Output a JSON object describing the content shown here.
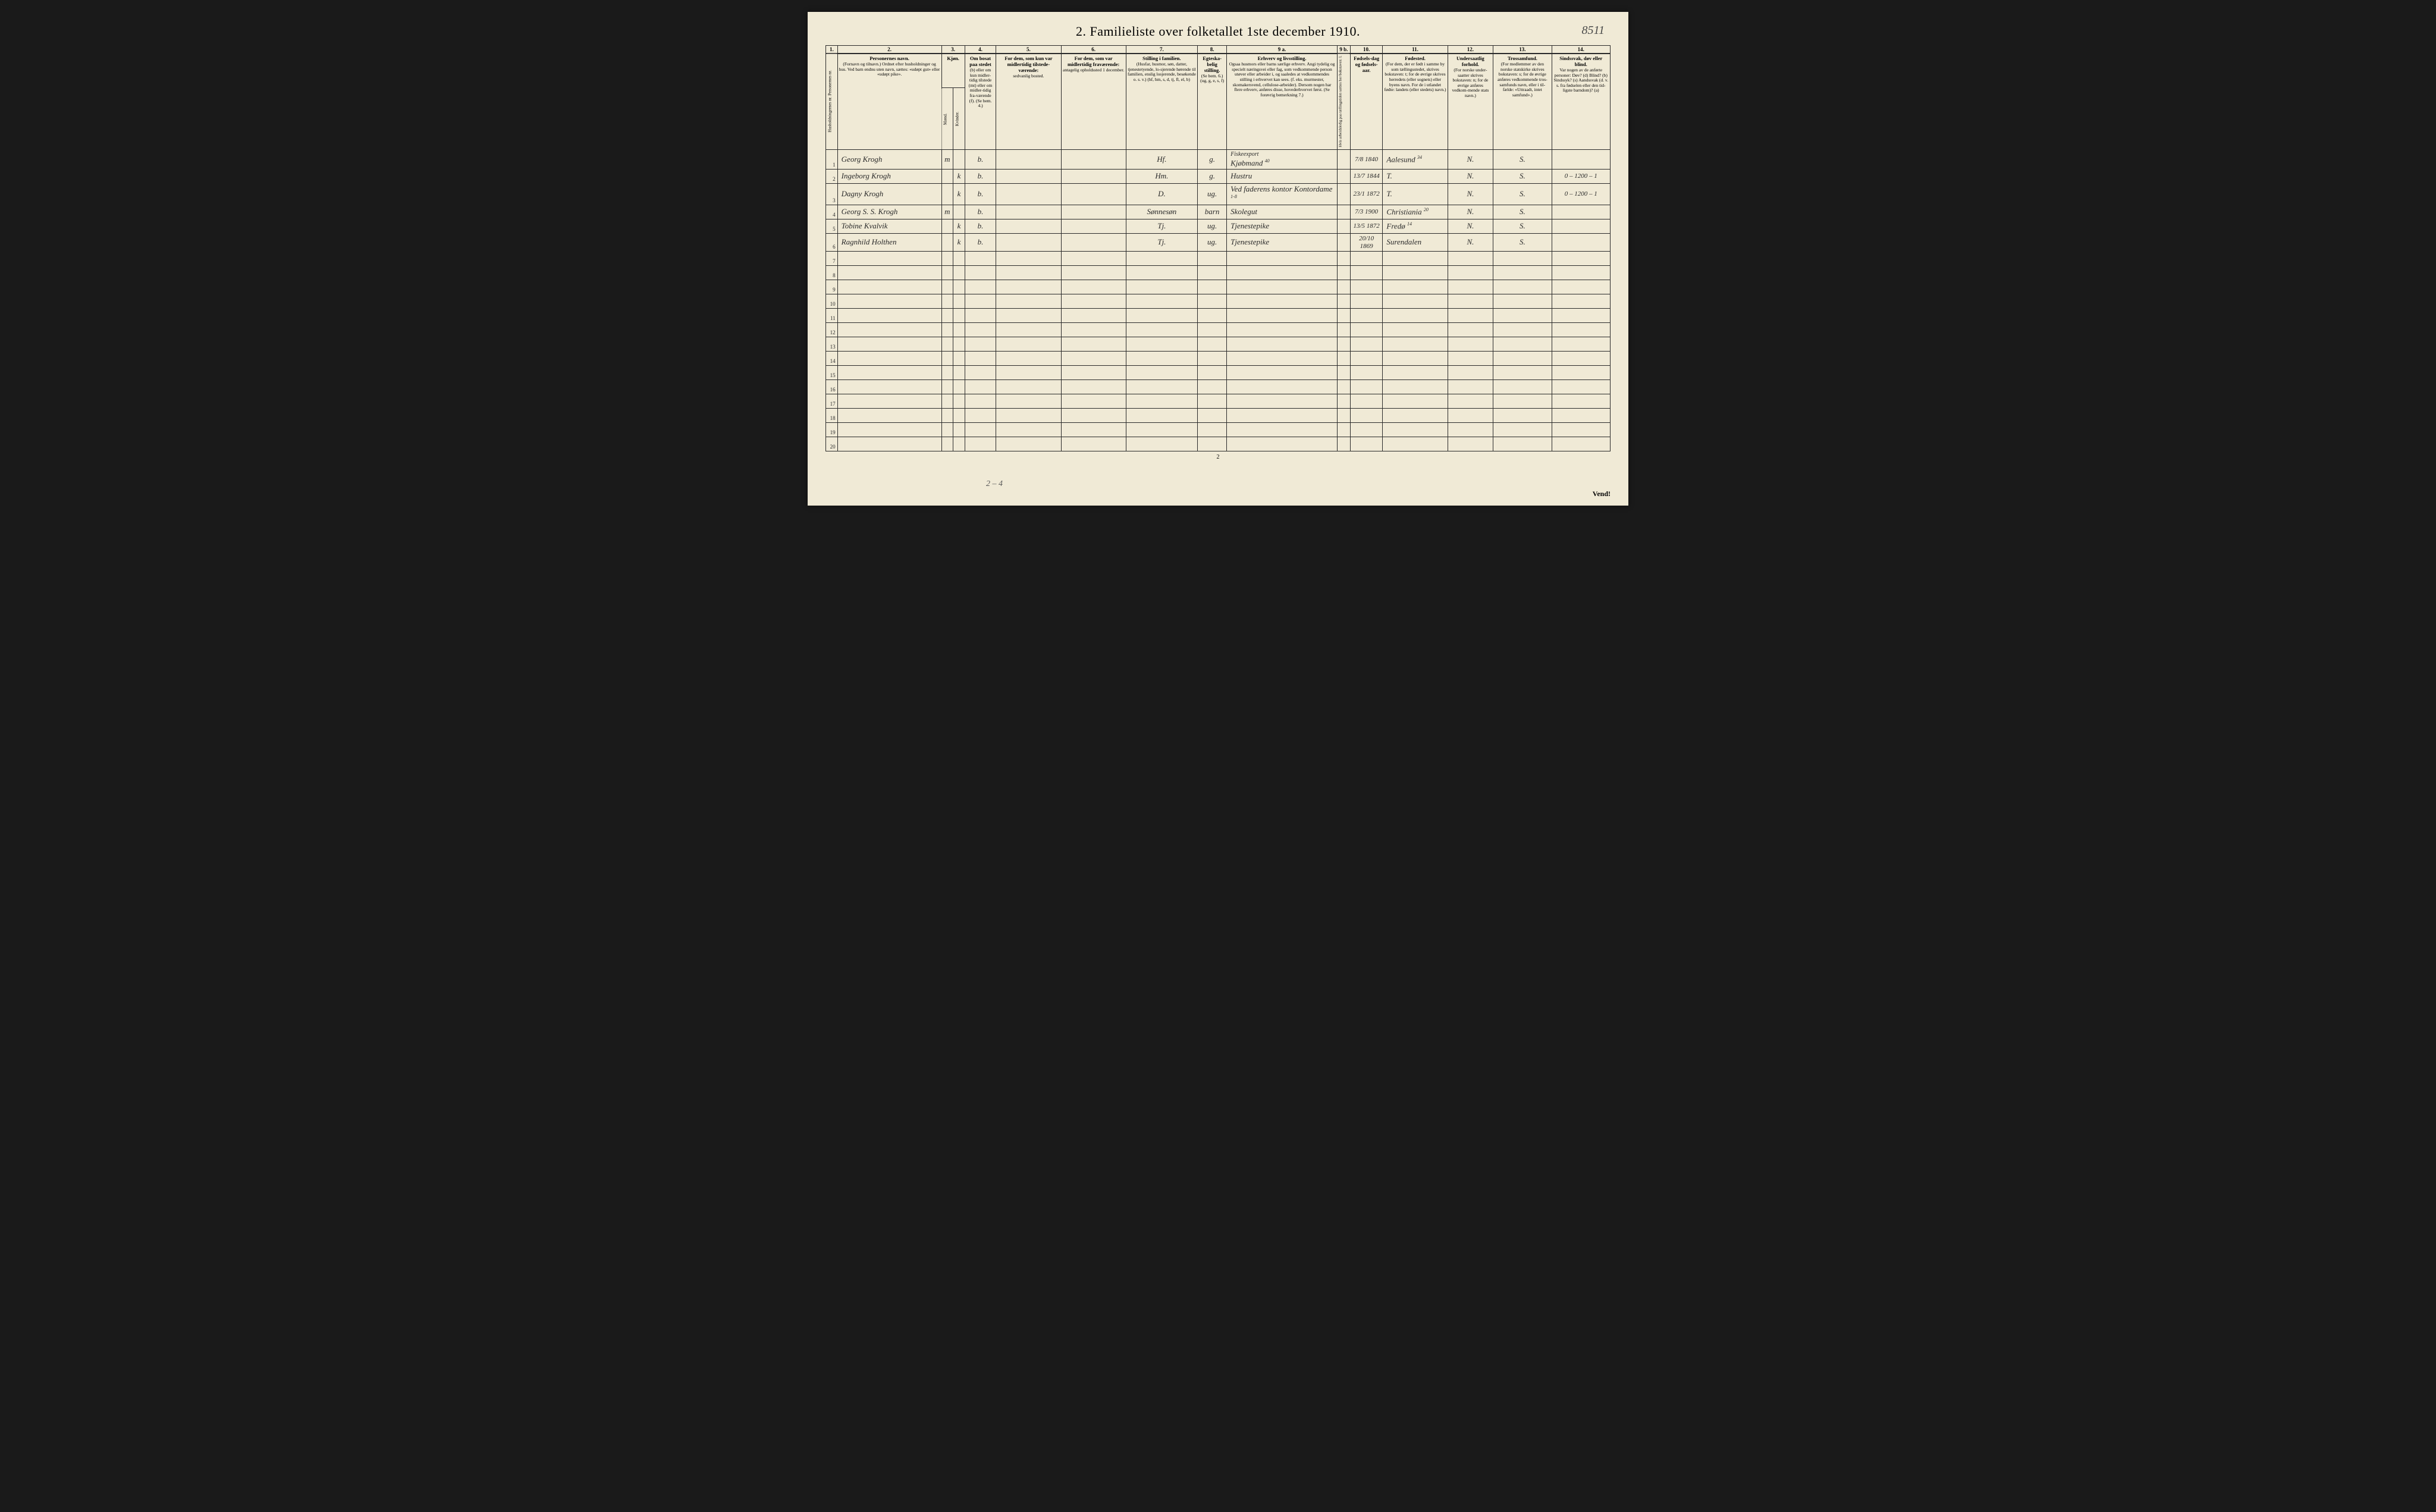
{
  "document": {
    "title": "2.  Familieliste over folketallet 1ste december 1910.",
    "sheet_number": "8511",
    "page_footer_number": "2",
    "footer_pencil": "2 – 4",
    "vend": "Vend!",
    "background_color": "#f0ead6",
    "border_color": "#2a2a2a",
    "handwriting_color": "#2a2a2a"
  },
  "columns": {
    "numbers": [
      "1.",
      "2.",
      "3.",
      "4.",
      "5.",
      "6.",
      "7.",
      "8.",
      "9 a.",
      "9 b.",
      "10.",
      "11.",
      "12.",
      "13.",
      "14."
    ],
    "headers": {
      "c1": "Husholdningernes nr.\nPersonernes nr.",
      "c2_title": "Personernes navn.",
      "c2_sub": "(Fornavn og tilnavn.)\nOrdnet efter husholdninger og hus.\nVed barn endnu uten navn, sættes: «udøpt gut» eller «udøpt pike».",
      "c3_title": "Kjøn.",
      "c3_m": "Mænd.",
      "c3_k": "Kvinder.",
      "c3_mk": "m. | k.",
      "c4_title": "Om bosat paa stedet",
      "c4_sub": "(b) eller om kun midler-tidig tilstede (mt) eller om midler-tidig fra-værende (f).\n(Se bem. 4.)",
      "c5_title": "For dem, som kun var midlertidig tilstede-værende:",
      "c5_sub": "sedvanlig bosted.",
      "c6_title": "For dem, som var midlertidig fraværende:",
      "c6_sub": "antagelig opholdssted 1 december.",
      "c7_title": "Stilling i familien.",
      "c7_sub": "(Husfar, husmor, søn, datter, tjenestetyende, lo-sjerende hørende til familien, enslig losjerende, besøkende o. s. v.)\n(hf, hm, s, d, tj, fl, el, b)",
      "c8_title": "Egteska-belig stilling.",
      "c8_sub": "(Se bem. 6.)\n(ug, g, e, s, f)",
      "c9a_title": "Erhverv og livsstilling.",
      "c9a_sub": "Ogsaa husmors eller barns særlige erhverv. Angi tydelig og specielt næringsvei eller fag, som vedkommende person utøver eller arbeider i, og saaledes at vedkommendes stilling i erhvervet kan sees. (f. eks. murmester, skomakersvend, cellulose-arbeider). Dersom nogen har flere erhverv, anføres disse, hovederhvervet først.\n(Se forøvrig bemerkning 7.)",
      "c9b": "Hvis arbeidsledig paa tællingstiden sættes her bokstaven: l.",
      "c10_title": "Fødsels-dag og fødsels-aar.",
      "c11_title": "Fødested.",
      "c11_sub": "(For dem, der er født i samme by som tællingsstedet, skrives bokstaven: t; for de øvrige skrives herredets (eller sognets) eller byens navn. For de i utlandet fødte: landets (eller stedets) navn.)",
      "c12_title": "Undersaatlig forhold.",
      "c12_sub": "(For norske under-saatter skrives bokstaven: n; for de øvrige anføres vedkom-mende stats navn.)",
      "c13_title": "Trossamfund.",
      "c13_sub": "(For medlemmer av den norske statskirke skrives bokstaven: s; for de øvrige anføres vedkommende tros-samfunds navn, eller i til-fælde: «Uttraadt, intet samfund».)",
      "c14_title": "Sindssvak, døv eller blind.",
      "c14_sub": "Var nogen av de anførte personer:\nDøv? (d)\nBlind? (b)\nSindssyk? (s)\nAandssvak (d. v. s. fra fødselen eller den tid-ligste barndom)? (a)"
    }
  },
  "rows": [
    {
      "n": "1",
      "name": "Georg Krogh",
      "m": "m",
      "k": "",
      "bosat": "b.",
      "c5": "",
      "c6": "",
      "c7": "Hf.",
      "c8": "g.",
      "c9a_top": "Fiskeexport",
      "c9a": "Kjøbmand",
      "c9a_note": "40",
      "c9b": "",
      "c10": "7/8 1840",
      "c11": "Aalesund",
      "c11_note": "34",
      "c12": "N.",
      "c13": "S.",
      "c14": ""
    },
    {
      "n": "2",
      "name": "Ingeborg Krogh",
      "m": "",
      "k": "k",
      "bosat": "b.",
      "c5": "",
      "c6": "",
      "c7": "Hm.",
      "c8": "g.",
      "c9a": "Hustru",
      "c9b": "",
      "c10": "13/7 1844",
      "c11": "T.",
      "c12": "N.",
      "c13": "S.",
      "c14": "0 – 1200 – 1"
    },
    {
      "n": "3",
      "name": "Dagny Krogh",
      "m": "",
      "k": "k",
      "bosat": "b.",
      "c5": "",
      "c6": "",
      "c7": "D.",
      "c8": "ug.",
      "c9a": "Ved faderens kontor Kontordame",
      "c9a_note": "1-8",
      "c9b": "",
      "c10": "23/1 1872",
      "c11": "T.",
      "c12": "N.",
      "c13": "S.",
      "c14": "0 – 1200 – 1"
    },
    {
      "n": "4",
      "name": "Georg S. S. Krogh",
      "m": "m",
      "k": "",
      "bosat": "b.",
      "c5": "",
      "c6": "",
      "c7": "Sønnesøn",
      "c8": "barn",
      "c9a": "Skolegut",
      "c9b": "",
      "c10": "7/3 1900",
      "c11": "Christiania",
      "c11_note": "20",
      "c12": "N.",
      "c13": "S.",
      "c14": ""
    },
    {
      "n": "5",
      "name": "Tobine Kvalvik",
      "m": "",
      "k": "k",
      "bosat": "b.",
      "c5": "",
      "c6": "",
      "c7": "Tj.",
      "c8": "ug.",
      "c9a": "Tjenestepike",
      "c9b": "",
      "c10": "13/5 1872",
      "c11": "Fredø",
      "c11_note": "14",
      "c12": "N.",
      "c13": "S.",
      "c14": ""
    },
    {
      "n": "6",
      "name": "Ragnhild Holthen",
      "m": "",
      "k": "k",
      "bosat": "b.",
      "c5": "",
      "c6": "",
      "c7": "Tj.",
      "c8": "ug.",
      "c9a": "Tjenestepike",
      "c9b": "",
      "c10": "20/10 1869",
      "c11": "Surendalen",
      "c12": "N.",
      "c13": "S.",
      "c14": ""
    }
  ],
  "empty_rows": [
    7,
    8,
    9,
    10,
    11,
    12,
    13,
    14,
    15,
    16,
    17,
    18,
    19,
    20
  ]
}
